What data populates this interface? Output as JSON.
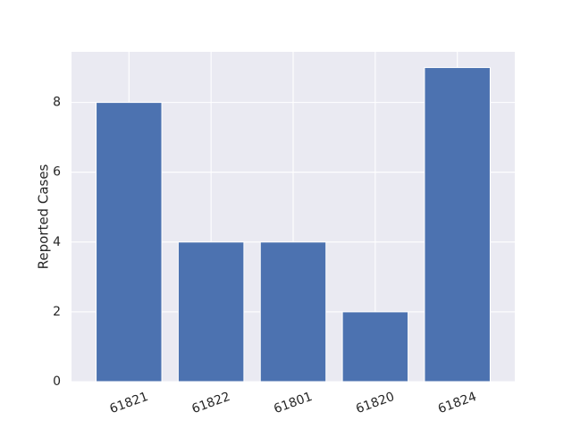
{
  "chart_data": {
    "type": "bar",
    "title": "",
    "xlabel": "",
    "ylabel": "Reported Cases",
    "categories": [
      "61821",
      "61822",
      "61801",
      "61820",
      "61824"
    ],
    "values": [
      8,
      4,
      4,
      2,
      9
    ],
    "ylim": [
      0,
      9.45
    ],
    "yticks": [
      0,
      2,
      4,
      6,
      8
    ],
    "grid": true,
    "legend": "none",
    "x_tick_rotation_deg": 20,
    "colors": {
      "bar": "#4c72b0",
      "plot_background": "#eaeaf2",
      "grid": "#ffffff",
      "text": "#262626"
    }
  }
}
